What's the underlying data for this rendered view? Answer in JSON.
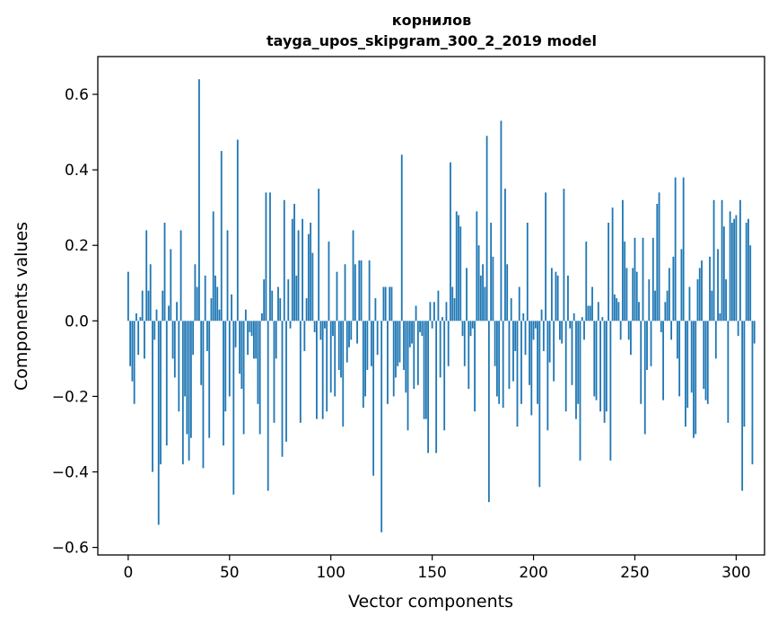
{
  "chart_data": {
    "type": "bar",
    "title": "корнилов",
    "subtitle": "tayga_upos_skipgram_300_2_2019 model",
    "xlabel": "Vector components",
    "ylabel": "Components values",
    "xlim": [
      -15,
      314
    ],
    "ylim": [
      -0.62,
      0.7
    ],
    "xticks": [
      0,
      50,
      100,
      150,
      200,
      250,
      300
    ],
    "xtick_labels": [
      "0",
      "50",
      "100",
      "150",
      "200",
      "250",
      "300"
    ],
    "yticks": [
      -0.6,
      -0.4,
      -0.2,
      0.0,
      0.2,
      0.4,
      0.6
    ],
    "ytick_labels": [
      "−0.6",
      "−0.4",
      "−0.2",
      "0.0",
      "0.2",
      "0.4",
      "0.6"
    ],
    "grid": false,
    "bar_color": "#1f77b4",
    "x_start": 0,
    "values": [
      0.13,
      -0.12,
      -0.16,
      -0.22,
      0.02,
      -0.09,
      0.01,
      0.08,
      -0.1,
      0.24,
      0.08,
      0.15,
      -0.4,
      -0.05,
      0.03,
      -0.54,
      -0.38,
      0.08,
      0.26,
      -0.33,
      0.04,
      0.19,
      -0.1,
      -0.15,
      0.05,
      -0.24,
      0.24,
      -0.38,
      -0.2,
      -0.3,
      -0.37,
      -0.31,
      -0.09,
      0.15,
      0.09,
      0.64,
      -0.17,
      -0.39,
      0.12,
      -0.08,
      -0.31,
      0.06,
      0.29,
      0.12,
      0.09,
      0.03,
      0.45,
      -0.33,
      -0.24,
      0.24,
      -0.2,
      0.07,
      -0.46,
      -0.07,
      0.48,
      -0.14,
      -0.18,
      -0.3,
      0.03,
      -0.09,
      -0.03,
      -0.04,
      -0.1,
      -0.1,
      -0.22,
      -0.3,
      0.02,
      0.11,
      0.34,
      -0.45,
      0.34,
      0.08,
      -0.27,
      -0.1,
      0.09,
      0.06,
      -0.36,
      0.32,
      -0.32,
      0.11,
      -0.02,
      0.27,
      0.31,
      0.12,
      0.24,
      -0.27,
      0.27,
      -0.08,
      0.06,
      0.23,
      0.26,
      0.18,
      -0.03,
      -0.26,
      0.35,
      -0.05,
      -0.26,
      -0.02,
      -0.24,
      0.21,
      -0.19,
      -0.04,
      -0.2,
      0.13,
      -0.13,
      -0.15,
      -0.28,
      0.15,
      -0.11,
      -0.07,
      -0.05,
      0.24,
      0.15,
      -0.06,
      0.16,
      0.16,
      -0.23,
      -0.2,
      -0.13,
      0.16,
      -0.12,
      -0.41,
      0.06,
      -0.09,
      0.0,
      -0.56,
      0.09,
      0.09,
      -0.22,
      0.09,
      0.09,
      -0.2,
      -0.15,
      -0.12,
      -0.11,
      0.44,
      -0.13,
      -0.19,
      -0.29,
      -0.07,
      -0.06,
      -0.18,
      0.04,
      -0.17,
      -0.03,
      -0.04,
      -0.26,
      -0.26,
      -0.35,
      0.05,
      -0.02,
      0.05,
      -0.35,
      0.08,
      -0.15,
      0.01,
      -0.29,
      0.05,
      -0.12,
      0.42,
      0.09,
      0.06,
      0.29,
      0.28,
      0.25,
      -0.04,
      -0.12,
      0.14,
      -0.18,
      -0.04,
      -0.02,
      -0.24,
      0.29,
      0.2,
      0.12,
      0.15,
      0.09,
      0.49,
      -0.48,
      0.26,
      0.17,
      -0.12,
      -0.2,
      -0.22,
      0.53,
      -0.23,
      0.35,
      0.15,
      -0.18,
      0.06,
      -0.16,
      -0.08,
      -0.28,
      0.09,
      -0.22,
      0.02,
      -0.09,
      0.26,
      -0.17,
      -0.25,
      -0.05,
      -0.02,
      -0.22,
      -0.44,
      0.03,
      -0.08,
      0.34,
      -0.29,
      -0.11,
      0.14,
      -0.16,
      0.13,
      0.12,
      -0.05,
      -0.06,
      0.35,
      -0.24,
      0.12,
      -0.02,
      -0.17,
      0.02,
      -0.26,
      -0.22,
      -0.37,
      0.01,
      -0.05,
      0.21,
      0.04,
      0.04,
      0.09,
      -0.2,
      -0.21,
      0.05,
      -0.24,
      0.01,
      -0.27,
      -0.24,
      0.26,
      -0.37,
      0.3,
      0.07,
      0.06,
      0.05,
      -0.05,
      0.32,
      0.21,
      0.14,
      -0.05,
      -0.09,
      0.14,
      0.22,
      0.13,
      0.05,
      -0.22,
      0.22,
      -0.3,
      -0.13,
      0.11,
      -0.12,
      0.22,
      0.08,
      0.31,
      0.34,
      -0.03,
      -0.21,
      0.05,
      0.08,
      0.14,
      -0.05,
      0.17,
      0.38,
      -0.1,
      -0.2,
      0.19,
      0.38,
      -0.28,
      -0.23,
      0.09,
      -0.19,
      -0.31,
      -0.3,
      0.11,
      0.14,
      0.16,
      -0.18,
      -0.21,
      -0.22,
      0.17,
      0.08,
      0.32,
      -0.1,
      0.19,
      0.02,
      0.32,
      0.25,
      0.11,
      -0.27,
      0.29,
      0.26,
      0.27,
      0.28,
      -0.04,
      0.32,
      -0.45,
      -0.28,
      0.26,
      0.27,
      0.2,
      -0.38,
      -0.06
    ]
  }
}
